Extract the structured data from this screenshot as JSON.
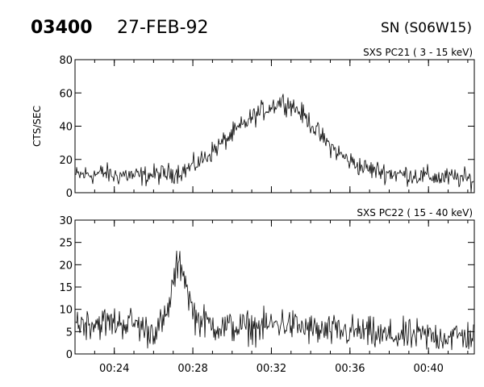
{
  "header": {
    "event_id": "03400",
    "date": "27-FEB-92",
    "position": "SN (S06W15)"
  },
  "chart_data": [
    {
      "type": "line",
      "title": "SXS PC21  (  3 - 15 keV)",
      "ylabel": "CTS/SEC",
      "ylim": [
        0,
        80
      ],
      "yticks": [
        "0",
        "20",
        "40",
        "60",
        "80"
      ],
      "xlim": [
        "00:22:00",
        "00:42:20"
      ],
      "xticks": [
        "00:24",
        "00:28",
        "00:32",
        "00:36",
        "00:40"
      ],
      "series": [
        {
          "x": [
            "00:22:00",
            "00:22:30",
            "00:23:00",
            "00:23:30",
            "00:24:00",
            "00:24:30",
            "00:25:00",
            "00:25:30",
            "00:26:00",
            "00:26:30",
            "00:27:00",
            "00:27:30",
            "00:28:00",
            "00:28:30",
            "00:29:00",
            "00:29:30",
            "00:30:00",
            "00:30:30",
            "00:31:00",
            "00:31:30",
            "00:32:00",
            "00:32:30",
            "00:33:00",
            "00:33:30",
            "00:34:00",
            "00:34:30",
            "00:35:00",
            "00:35:30",
            "00:36:00",
            "00:36:30",
            "00:37:00",
            "00:37:30",
            "00:38:00",
            "00:38:30",
            "00:39:00",
            "00:39:30",
            "00:40:00",
            "00:40:30",
            "00:41:00",
            "00:41:30",
            "00:42:00",
            "00:42:20"
          ],
          "y": [
            10,
            11,
            11,
            12,
            10,
            11,
            10,
            10,
            11,
            11,
            12,
            13,
            16,
            20,
            25,
            30,
            35,
            40,
            45,
            49,
            52,
            55,
            53,
            48,
            42,
            34,
            28,
            23,
            19,
            16,
            14,
            13,
            12,
            11,
            11,
            10,
            10,
            9,
            9,
            9,
            8,
            8
          ],
          "noise_amplitude": 3.0
        }
      ]
    },
    {
      "type": "line",
      "title": "SXS PC22  ( 15 - 40 keV)",
      "ylabel": "",
      "ylim": [
        0,
        30
      ],
      "yticks": [
        "0",
        "5",
        "10",
        "15",
        "20",
        "25",
        "30"
      ],
      "xlim": [
        "00:22:00",
        "00:42:20"
      ],
      "xticks": [
        "00:24",
        "00:28",
        "00:32",
        "00:36",
        "00:40"
      ],
      "series": [
        {
          "x": [
            "00:22:00",
            "00:23:00",
            "00:24:00",
            "00:25:00",
            "00:25:45",
            "00:26:15",
            "00:26:40",
            "00:26:50",
            "00:27:00",
            "00:27:10",
            "00:27:20",
            "00:27:30",
            "00:27:40",
            "00:27:50",
            "00:28:10",
            "00:28:40",
            "00:29:30",
            "00:30:30",
            "00:31:30",
            "00:32:30",
            "00:33:30",
            "00:34:30",
            "00:35:30",
            "00:36:30",
            "00:37:30",
            "00:38:30",
            "00:39:30",
            "00:40:30",
            "00:41:30",
            "00:42:20"
          ],
          "y": [
            7,
            7,
            7,
            7,
            5,
            6,
            8,
            12,
            16,
            19,
            20,
            19,
            16,
            12,
            8,
            7,
            6,
            6,
            6,
            7,
            6,
            5,
            5,
            5,
            4,
            4,
            4,
            4,
            4,
            4
          ],
          "noise_amplitude": 1.8
        }
      ]
    }
  ]
}
